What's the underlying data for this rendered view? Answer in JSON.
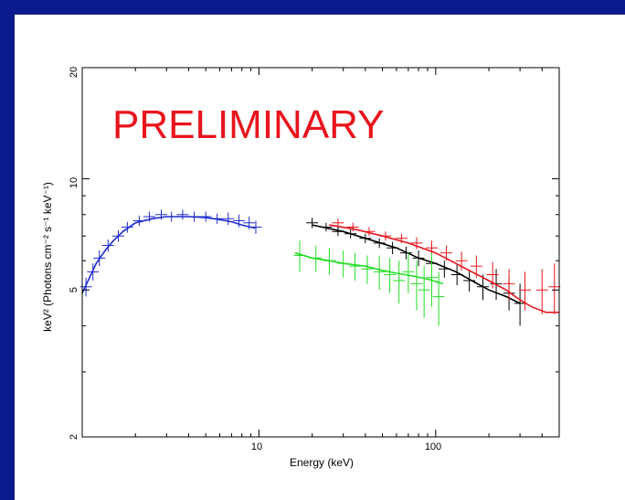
{
  "chart_data": {
    "type": "scatter",
    "xlabel": "Energy (keV)",
    "ylabel": "keV² (Photons cm⁻² s⁻¹ keV⁻¹)",
    "annotation": "PRELIMINARY",
    "x_scale": "log",
    "y_scale": "log",
    "xlim": [
      1.0,
      500
    ],
    "ylim": [
      2,
      20
    ],
    "x_tick_labels": [
      "10",
      "100"
    ],
    "y_tick_labels": [
      "2",
      "5",
      "10",
      "20"
    ],
    "grid": false,
    "legend": "none",
    "series": [
      {
        "color": "#1f2bd0",
        "model": [
          [
            1.0,
            4.9
          ],
          [
            1.1,
            5.4
          ],
          [
            1.2,
            5.9
          ],
          [
            1.35,
            6.4
          ],
          [
            1.5,
            6.8
          ],
          [
            1.7,
            7.2
          ],
          [
            2.0,
            7.6
          ],
          [
            2.5,
            7.8
          ],
          [
            3.0,
            7.9
          ],
          [
            4.0,
            7.9
          ],
          [
            5.0,
            7.85
          ],
          [
            6.0,
            7.75
          ],
          [
            7.0,
            7.65
          ],
          [
            8.0,
            7.5
          ],
          [
            9.5,
            7.35
          ]
        ],
        "data": [
          [
            1.05,
            5.1,
            0.3
          ],
          [
            1.15,
            5.6,
            0.3
          ],
          [
            1.25,
            6.1,
            0.3
          ],
          [
            1.4,
            6.6,
            0.25
          ],
          [
            1.6,
            7.0,
            0.25
          ],
          [
            1.8,
            7.4,
            0.25
          ],
          [
            2.1,
            7.7,
            0.25
          ],
          [
            2.4,
            7.9,
            0.25
          ],
          [
            2.8,
            8.0,
            0.25
          ],
          [
            3.2,
            7.9,
            0.25
          ],
          [
            3.7,
            8.0,
            0.25
          ],
          [
            4.3,
            7.9,
            0.25
          ],
          [
            5.0,
            7.9,
            0.25
          ],
          [
            5.8,
            7.8,
            0.25
          ],
          [
            6.7,
            7.8,
            0.3
          ],
          [
            7.7,
            7.7,
            0.3
          ],
          [
            8.8,
            7.6,
            0.3
          ],
          [
            9.6,
            7.4,
            0.3
          ]
        ]
      },
      {
        "color": "#000000",
        "model": [
          [
            20,
            7.5
          ],
          [
            30,
            7.2
          ],
          [
            40,
            6.9
          ],
          [
            60,
            6.5
          ],
          [
            80,
            6.1
          ],
          [
            100,
            5.9
          ],
          [
            130,
            5.6
          ],
          [
            160,
            5.3
          ],
          [
            200,
            5.0
          ],
          [
            250,
            4.8
          ],
          [
            300,
            4.6
          ]
        ],
        "data": [
          [
            20,
            7.6,
            0.25
          ],
          [
            24,
            7.4,
            0.2
          ],
          [
            28,
            7.2,
            0.2
          ],
          [
            33,
            7.1,
            0.2
          ],
          [
            40,
            6.9,
            0.2
          ],
          [
            48,
            6.7,
            0.2
          ],
          [
            57,
            6.5,
            0.25
          ],
          [
            68,
            6.3,
            0.25
          ],
          [
            80,
            6.1,
            0.3
          ],
          [
            95,
            5.9,
            0.3
          ],
          [
            112,
            5.7,
            0.3
          ],
          [
            132,
            5.5,
            0.35
          ],
          [
            155,
            5.3,
            0.35
          ],
          [
            185,
            5.1,
            0.4
          ],
          [
            220,
            5.2,
            0.5
          ],
          [
            260,
            4.9,
            0.5
          ],
          [
            300,
            4.6,
            0.6
          ]
        ]
      },
      {
        "color": "#e8141c",
        "model": [
          [
            25,
            7.5
          ],
          [
            35,
            7.3
          ],
          [
            50,
            7.0
          ],
          [
            70,
            6.7
          ],
          [
            100,
            6.3
          ],
          [
            130,
            5.9
          ],
          [
            160,
            5.6
          ],
          [
            200,
            5.3
          ],
          [
            250,
            5.0
          ],
          [
            300,
            4.7
          ],
          [
            350,
            4.5
          ],
          [
            420,
            4.35
          ],
          [
            500,
            4.35
          ]
        ],
        "data": [
          [
            28,
            7.6,
            0.2
          ],
          [
            34,
            7.4,
            0.2
          ],
          [
            42,
            7.2,
            0.2
          ],
          [
            52,
            7.0,
            0.2
          ],
          [
            64,
            6.9,
            0.2
          ],
          [
            78,
            6.7,
            0.25
          ],
          [
            95,
            6.5,
            0.3
          ],
          [
            115,
            6.3,
            0.3
          ],
          [
            140,
            6.0,
            0.35
          ],
          [
            170,
            5.8,
            0.4
          ],
          [
            210,
            5.5,
            0.45
          ],
          [
            260,
            5.2,
            0.5
          ],
          [
            320,
            5.0,
            0.6
          ],
          [
            400,
            5.0,
            0.7
          ],
          [
            470,
            5.1,
            0.8
          ]
        ]
      },
      {
        "color": "#22dd22",
        "model": [
          [
            16,
            6.3
          ],
          [
            20,
            6.1
          ],
          [
            25,
            6.0
          ],
          [
            30,
            5.9
          ],
          [
            40,
            5.8
          ],
          [
            50,
            5.65
          ],
          [
            60,
            5.55
          ],
          [
            75,
            5.45
          ],
          [
            90,
            5.35
          ],
          [
            110,
            5.2
          ]
        ],
        "data": [
          [
            17,
            6.2,
            0.6
          ],
          [
            21,
            6.1,
            0.5
          ],
          [
            25,
            6.0,
            0.5
          ],
          [
            30,
            5.9,
            0.5
          ],
          [
            35,
            5.8,
            0.5
          ],
          [
            41,
            5.7,
            0.5
          ],
          [
            48,
            5.6,
            0.6
          ],
          [
            55,
            5.5,
            0.6
          ],
          [
            62,
            5.3,
            0.7
          ],
          [
            70,
            5.6,
            0.7
          ],
          [
            78,
            5.2,
            0.8
          ],
          [
            86,
            5.0,
            0.8
          ],
          [
            95,
            5.4,
            0.9
          ],
          [
            104,
            4.8,
            0.8
          ]
        ]
      }
    ]
  }
}
